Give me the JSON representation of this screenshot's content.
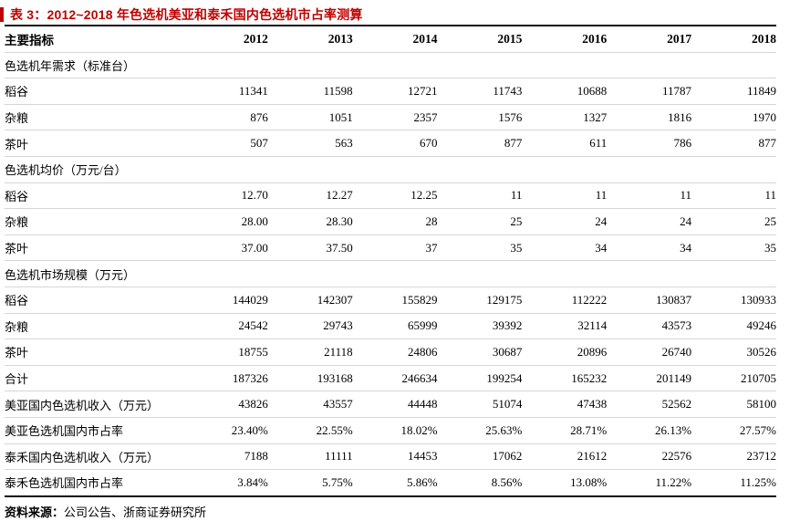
{
  "colors": {
    "accent_red": "#C00000",
    "thick_border": "#111111",
    "row_border": "#D6D6D6"
  },
  "title": {
    "text": "表 3：2012~2018 年色选机美亚和泰禾国内色选机市占率测算"
  },
  "table": {
    "header": {
      "label": "主要指标",
      "years": [
        "2012",
        "2013",
        "2014",
        "2015",
        "2016",
        "2017",
        "2018"
      ]
    },
    "rows": [
      {
        "type": "section",
        "label": "色选机年需求（标准台）",
        "values": []
      },
      {
        "type": "data",
        "label": "稻谷",
        "values": [
          "11341",
          "11598",
          "12721",
          "11743",
          "10688",
          "11787",
          "11849"
        ]
      },
      {
        "type": "data",
        "label": "杂粮",
        "values": [
          "876",
          "1051",
          "2357",
          "1576",
          "1327",
          "1816",
          "1970"
        ]
      },
      {
        "type": "data",
        "label": "茶叶",
        "values": [
          "507",
          "563",
          "670",
          "877",
          "611",
          "786",
          "877"
        ]
      },
      {
        "type": "section",
        "label": "色选机均价（万元/台）",
        "values": []
      },
      {
        "type": "data",
        "label": "稻谷",
        "values": [
          "12.70",
          "12.27",
          "12.25",
          "11",
          "11",
          "11",
          "11"
        ]
      },
      {
        "type": "data",
        "label": "杂粮",
        "values": [
          "28.00",
          "28.30",
          "28",
          "25",
          "24",
          "24",
          "25"
        ]
      },
      {
        "type": "data",
        "label": "茶叶",
        "values": [
          "37.00",
          "37.50",
          "37",
          "35",
          "34",
          "34",
          "35"
        ]
      },
      {
        "type": "section",
        "label": "色选机市场规模（万元）",
        "values": []
      },
      {
        "type": "data",
        "label": "稻谷",
        "values": [
          "144029",
          "142307",
          "155829",
          "129175",
          "112222",
          "130837",
          "130933"
        ]
      },
      {
        "type": "data",
        "label": "杂粮",
        "values": [
          "24542",
          "29743",
          "65999",
          "39392",
          "32114",
          "43573",
          "49246"
        ]
      },
      {
        "type": "data",
        "label": "茶叶",
        "values": [
          "18755",
          "21118",
          "24806",
          "30687",
          "20896",
          "26740",
          "30526"
        ]
      },
      {
        "type": "data",
        "label": "合计",
        "values": [
          "187326",
          "193168",
          "246634",
          "199254",
          "165232",
          "201149",
          "210705"
        ]
      },
      {
        "type": "full",
        "label": "美亚国内色选机收入（万元）",
        "values": [
          "43826",
          "43557",
          "44448",
          "51074",
          "47438",
          "52562",
          "58100"
        ]
      },
      {
        "type": "full",
        "label": "美亚色选机国内市占率",
        "values": [
          "23.40%",
          "22.55%",
          "18.02%",
          "25.63%",
          "28.71%",
          "26.13%",
          "27.57%"
        ]
      },
      {
        "type": "full",
        "label": "泰禾国内色选机收入（万元）",
        "values": [
          "7188",
          "11111",
          "14453",
          "17062",
          "21612",
          "22576",
          "23712"
        ]
      },
      {
        "type": "full",
        "label": "泰禾色选机国内市占率",
        "values": [
          "3.84%",
          "5.75%",
          "5.86%",
          "8.56%",
          "13.08%",
          "11.22%",
          "11.25%"
        ]
      }
    ]
  },
  "source": {
    "prefix": "资料来源：",
    "text": "公司公告、浙商证券研究所"
  }
}
